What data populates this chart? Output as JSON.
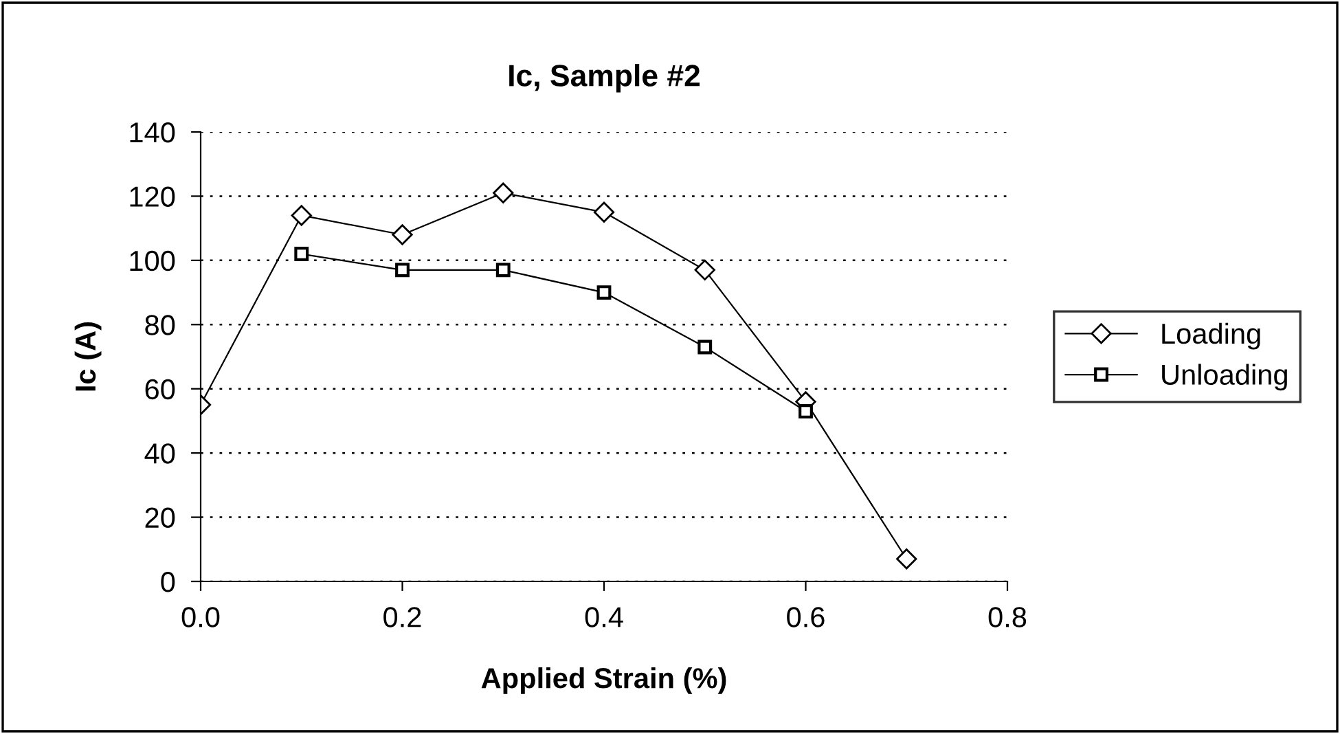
{
  "chart_data": {
    "type": "line",
    "title": "Ic, Sample #2",
    "xlabel": "Applied Strain (%)",
    "ylabel": "Ic (A)",
    "series": [
      {
        "name": "Loading",
        "color": "#000000",
        "marker": "diamond",
        "x": [
          0.0,
          0.1,
          0.2,
          0.3,
          0.4,
          0.5,
          0.6,
          0.7
        ],
        "values": [
          55,
          114,
          108,
          121,
          115,
          97,
          56,
          7
        ]
      },
      {
        "name": "Unloading",
        "color": "#000000",
        "marker": "square",
        "x": [
          0.1,
          0.2,
          0.3,
          0.4,
          0.5,
          0.6
        ],
        "values": [
          102,
          97,
          97,
          90,
          73,
          53
        ]
      }
    ],
    "xlim": [
      0,
      0.8
    ],
    "xticks": [
      {
        "value": 0,
        "label": "0.0"
      },
      0.2,
      0.4,
      0.6,
      0.8
    ],
    "ylim": [
      0,
      140
    ],
    "yticks": [
      0,
      20,
      40,
      60,
      80,
      100,
      120,
      140
    ],
    "grid": "y",
    "legend": "right",
    "line_style": "solid"
  }
}
